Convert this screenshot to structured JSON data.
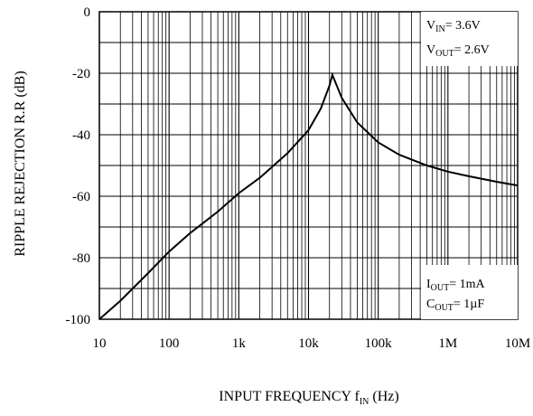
{
  "chart_data": {
    "type": "line",
    "xlabel": "INPUT FREQUENCY",
    "xlabel_symbol": "f",
    "xlabel_symbol_sub": "IN",
    "xlabel_unit": "(Hz)",
    "ylabel": "RIPPLE REJECTION  R.R (dB)",
    "x_scale": "log",
    "xlim": [
      10,
      10000000
    ],
    "ylim": [
      -100,
      0
    ],
    "grid": true,
    "x_ticks": [
      10,
      100,
      1000,
      10000,
      100000,
      1000000,
      10000000
    ],
    "x_tick_labels": [
      "10",
      "100",
      "1k",
      "10k",
      "100k",
      "1M",
      "10M"
    ],
    "y_ticks": [
      0,
      -20,
      -40,
      -60,
      -80,
      -100
    ],
    "y_tick_labels": [
      "0",
      "-20",
      "-40",
      "-60",
      "-80",
      "-100"
    ],
    "series": [
      {
        "x": [
          10,
          20,
          50,
          100,
          200,
          500,
          1000,
          2000,
          5000,
          10000,
          15000,
          20000,
          22000,
          30000,
          50000,
          100000,
          200000,
          500000,
          1000000,
          2000000,
          5000000,
          10000000
        ],
        "y": [
          -100,
          -94,
          -85,
          -78,
          -72,
          -65,
          -59,
          -54,
          -46,
          -38.5,
          -31.5,
          -24,
          -20.5,
          -28,
          -36,
          -42.5,
          -46.5,
          -50,
          -52,
          -53.5,
          -55.3,
          -56.5
        ]
      }
    ],
    "annotations": {
      "vin": {
        "sym": "V",
        "sub": "IN",
        "val": "= 3.6V"
      },
      "vout": {
        "sym": "V",
        "sub": "OUT",
        "val": "= 2.6V"
      },
      "iout": {
        "sym": "I",
        "sub": "OUT",
        "val": "= 1mA"
      },
      "cout": {
        "sym": "C",
        "sub": "OUT",
        "val": "= 1µF"
      }
    }
  }
}
